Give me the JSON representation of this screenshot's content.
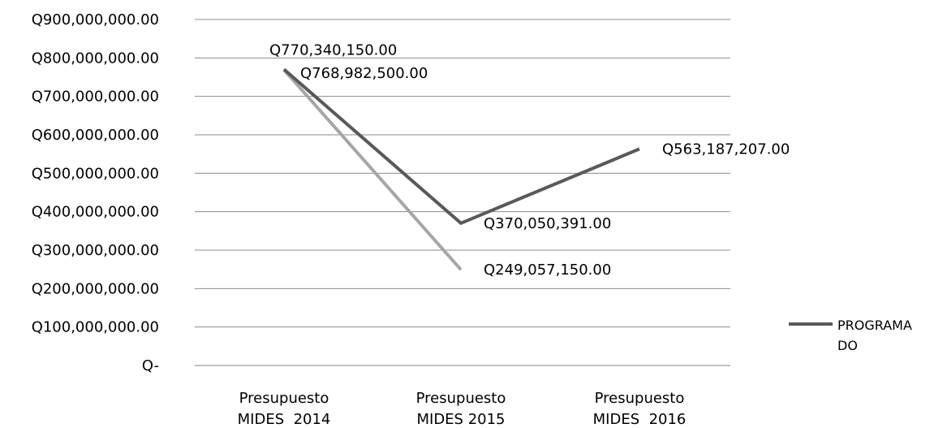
{
  "chart_data": {
    "type": "line",
    "categories": [
      "Presupuesto MIDES  2014",
      "Presupuesto MIDES 2015",
      "Presupuesto MIDES  2016"
    ],
    "category_lines": [
      [
        "Presupuesto",
        "MIDES  2014"
      ],
      [
        "Presupuesto",
        "MIDES 2015"
      ],
      [
        "Presupuesto",
        "MIDES  2016"
      ]
    ],
    "ylim": [
      0,
      900000000
    ],
    "y_ticks": [
      {
        "value": 900000000,
        "label": "Q900,000,000.00"
      },
      {
        "value": 800000000,
        "label": "Q800,000,000.00"
      },
      {
        "value": 700000000,
        "label": "Q700,000,000.00"
      },
      {
        "value": 600000000,
        "label": "Q600,000,000.00"
      },
      {
        "value": 500000000,
        "label": "Q500,000,000.00"
      },
      {
        "value": 400000000,
        "label": "Q400,000,000.00"
      },
      {
        "value": 300000000,
        "label": "Q300,000,000.00"
      },
      {
        "value": 200000000,
        "label": "Q200,000,000.00"
      },
      {
        "value": 100000000,
        "label": "Q100,000,000.00"
      },
      {
        "value": 0,
        "label": "Q-"
      }
    ],
    "grid": true,
    "legend_position": "right",
    "series": [
      {
        "name": "PROGRAMADO",
        "legend_lines": [
          "PROGRAMA",
          "DO"
        ],
        "color": "#595959",
        "values": [
          770340150,
          370050391,
          563187207
        ],
        "labels": [
          "Q770,340,150.00",
          "Q370,050,391.00",
          "Q563,187,207.00"
        ]
      },
      {
        "color": "#a6a6a6",
        "values": [
          768982500,
          249057150,
          null
        ],
        "labels": [
          "Q768,982,500.00",
          "Q249,057,150.00",
          null
        ]
      }
    ]
  }
}
